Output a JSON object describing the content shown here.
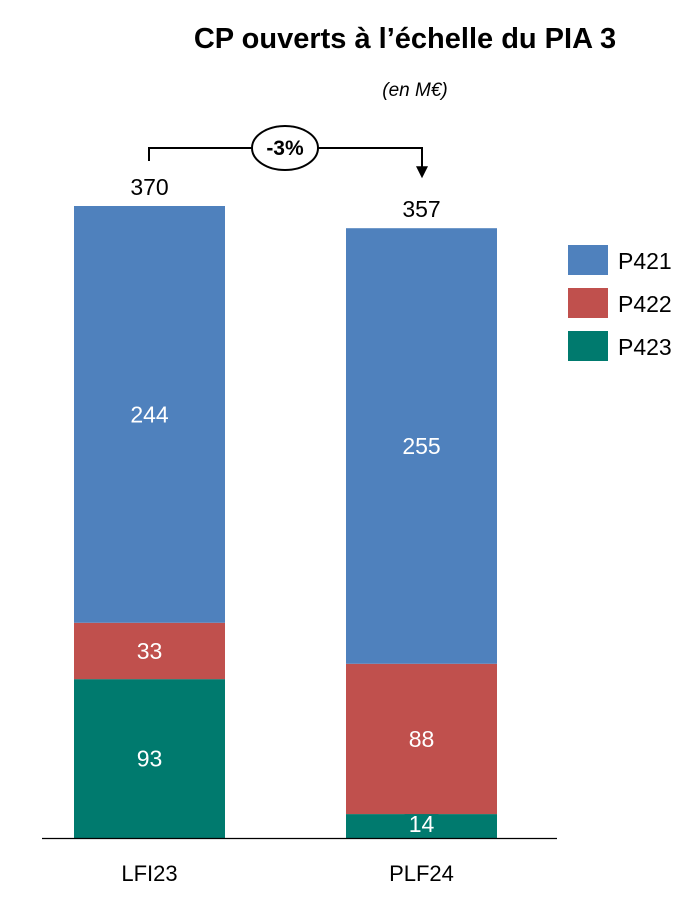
{
  "chart_data": {
    "type": "bar",
    "stacked": true,
    "title": "CP ouverts à l’échelle du PIA 3",
    "subtitle": "(en M€)",
    "categories": [
      "LFI23",
      "PLF24"
    ],
    "series": [
      {
        "name": "P423",
        "values": [
          93,
          14
        ],
        "color": "#007A6E"
      },
      {
        "name": "P422",
        "values": [
          33,
          88
        ],
        "color": "#C0504D"
      },
      {
        "name": "P421",
        "values": [
          244,
          255
        ],
        "color": "#4F81BD"
      }
    ],
    "totals": [
      370,
      357
    ],
    "change_label": "-3%",
    "ylim": [
      0,
      370
    ],
    "legend_order": [
      "P421",
      "P422",
      "P423"
    ],
    "legend_position": "right",
    "grid": false
  }
}
